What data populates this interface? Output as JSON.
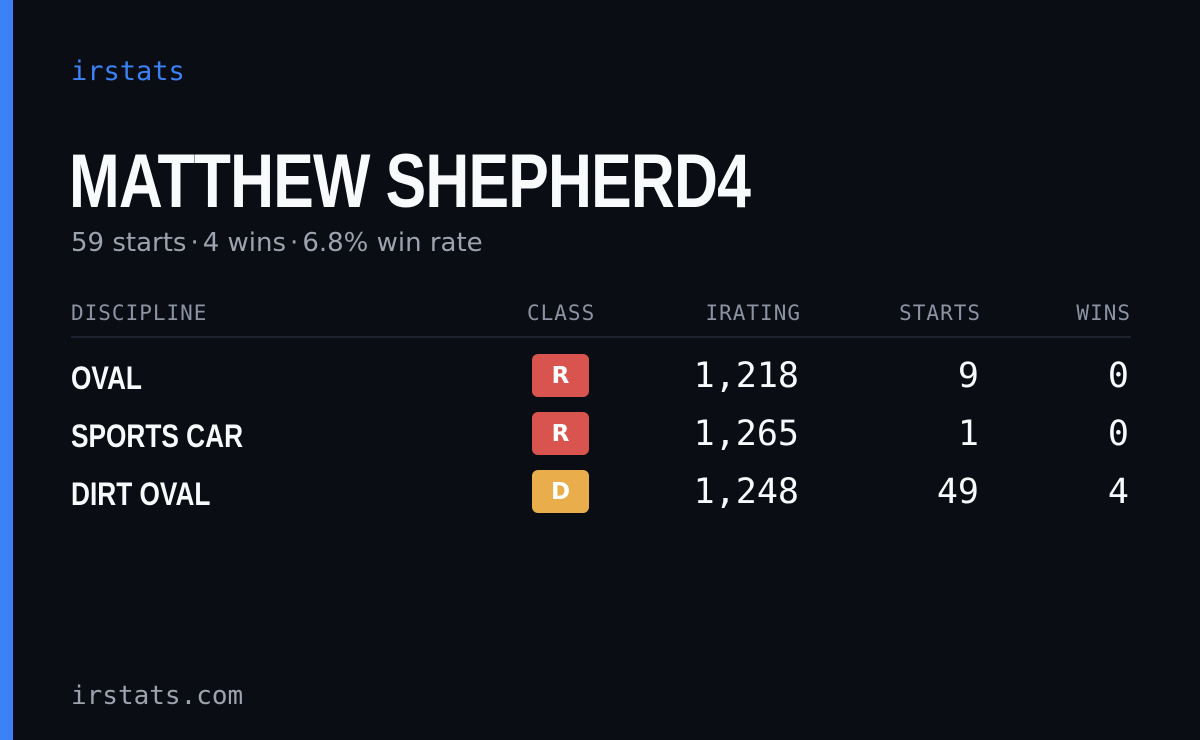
{
  "brand": "irstats",
  "player": {
    "name": "MATTHEW SHEPHERD4",
    "starts_text": "59 starts",
    "wins_text": "4 wins",
    "win_rate_text": "6.8% win rate",
    "separator": "·"
  },
  "table": {
    "headers": {
      "discipline": "DISCIPLINE",
      "class": "CLASS",
      "irating": "IRATING",
      "starts": "STARTS",
      "wins": "WINS"
    },
    "rows": [
      {
        "discipline": "OVAL",
        "class": "R",
        "class_color": "#d9534f",
        "irating": "1,218",
        "starts": "9",
        "wins": "0"
      },
      {
        "discipline": "SPORTS CAR",
        "class": "R",
        "class_color": "#d9534f",
        "irating": "1,265",
        "starts": "1",
        "wins": "0"
      },
      {
        "discipline": "DIRT OVAL",
        "class": "D",
        "class_color": "#e9ad4c",
        "irating": "1,248",
        "starts": "49",
        "wins": "4"
      }
    ]
  },
  "footer": "irstats.com",
  "colors": {
    "background": "#0a0d14",
    "accent": "#3b82f6",
    "class_r": "#d9534f",
    "class_d": "#e9ad4c"
  }
}
